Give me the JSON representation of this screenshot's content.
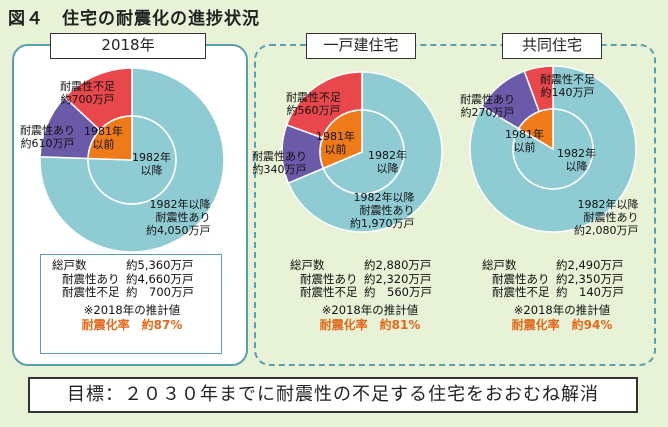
{
  "title": "図４　住宅の耐震化の進捗状況",
  "goal": "目標：２０３０年までに耐震性の不足する住宅をおおむね解消",
  "group_label": "2018年",
  "colors": {
    "built_after_1982": "#8fcbd3",
    "before_1981_sufficient": "#6a5aa8",
    "before_1981_insufficient": "#e8474c",
    "before_1981_inner": "#ef7a1a",
    "rate_text": "#e06a1c",
    "frame": "#5a9fb0"
  },
  "chart_data": [
    {
      "type": "pie",
      "title": "2018年",
      "unit": "万戸",
      "series": [
        {
          "name": "耐震性不足",
          "value": 700,
          "label": "耐震性不足\n約700万戸"
        },
        {
          "name": "耐震性あり",
          "value": 610,
          "label": "耐震性あり\n約610万戸"
        },
        {
          "name": "1982年以降耐震性あり",
          "value": 4050,
          "label": "1982年以降\n耐震性あり\n約4,050万戸"
        }
      ],
      "inner": [
        {
          "name": "1981年以前",
          "value": 1310,
          "label": "1981年\n以前"
        },
        {
          "name": "1982年以降",
          "value": 4050,
          "label": "1982年\n以降"
        }
      ],
      "summary": {
        "rows": [
          {
            "key": "総戸数",
            "value": "約5,360万戸"
          },
          {
            "key": "耐震性あり",
            "value": "約4,660万戸"
          },
          {
            "key": "耐震性不足",
            "value": "約　700万戸"
          }
        ],
        "note": "※2018年の推計値",
        "rate_label": "耐震化率",
        "rate_value": "約87%"
      }
    },
    {
      "type": "pie",
      "title": "一戸建住宅",
      "unit": "万戸",
      "series": [
        {
          "name": "耐震性不足",
          "value": 560,
          "label": "耐震性不足\n約560万戸"
        },
        {
          "name": "耐震性あり",
          "value": 340,
          "label": "耐震性あり\n約340万戸"
        },
        {
          "name": "1982年以降耐震性あり",
          "value": 1970,
          "label": "1982年以降\n耐震性あり\n約1,970万戸"
        }
      ],
      "inner": [
        {
          "name": "1981年以前",
          "value": 900,
          "label": "1981年\n以前"
        },
        {
          "name": "1982年以降",
          "value": 1970,
          "label": "1982年\n以降"
        }
      ],
      "summary": {
        "rows": [
          {
            "key": "総戸数",
            "value": "約2,880万戸"
          },
          {
            "key": "耐震性あり",
            "value": "約2,320万戸"
          },
          {
            "key": "耐震性不足",
            "value": "約　560万戸"
          }
        ],
        "note": "※2018年の推計値",
        "rate_label": "耐震化率",
        "rate_value": "約81%"
      }
    },
    {
      "type": "pie",
      "title": "共同住宅",
      "unit": "万戸",
      "series": [
        {
          "name": "耐震性不足",
          "value": 140,
          "label": "耐震性不足\n約140万戸"
        },
        {
          "name": "耐震性あり",
          "value": 270,
          "label": "耐震性あり\n約270万戸"
        },
        {
          "name": "1982年以降耐震性あり",
          "value": 2080,
          "label": "1982年以降\n耐震性あり\n約2,080万戸"
        }
      ],
      "inner": [
        {
          "name": "1981年以前",
          "value": 410,
          "label": "1981年\n以前"
        },
        {
          "name": "1982年以降",
          "value": 2080,
          "label": "1982年\n以降"
        }
      ],
      "summary": {
        "rows": [
          {
            "key": "総戸数",
            "value": "約2,490万戸"
          },
          {
            "key": "耐震性あり",
            "value": "約2,350万戸"
          },
          {
            "key": "耐震性不足",
            "value": "約　140万戸"
          }
        ],
        "note": "※2018年の推計値",
        "rate_label": "耐震化率",
        "rate_value": "約94%"
      }
    }
  ]
}
